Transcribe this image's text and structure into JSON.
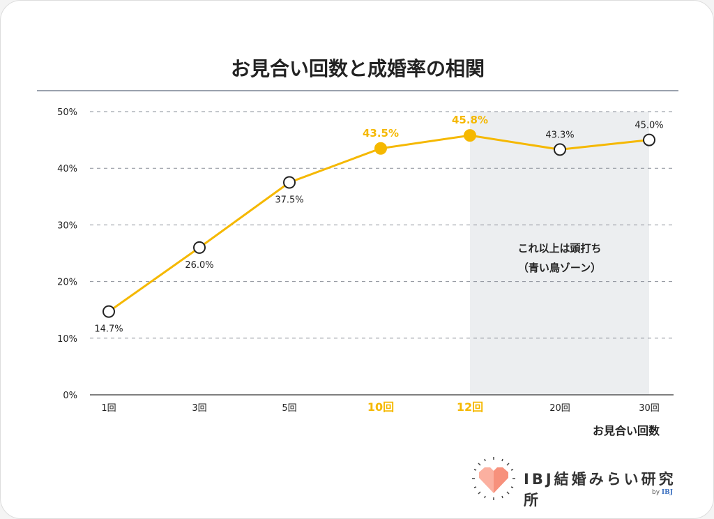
{
  "chart_data": {
    "type": "line",
    "title": "お見合い回数と成婚率の相関",
    "xlabel": "お見合い回数",
    "ylabel": "",
    "categories": [
      "1回",
      "3回",
      "5回",
      "10回",
      "12回",
      "20回",
      "30回"
    ],
    "values": [
      14.7,
      26.0,
      37.5,
      43.5,
      45.8,
      43.3,
      45.0
    ],
    "data_labels": [
      "14.7%",
      "26.0%",
      "37.5%",
      "43.5%",
      "45.8%",
      "43.3%",
      "45.0%"
    ],
    "highlighted": [
      "10回",
      "12回"
    ],
    "y_ticks": [
      "0%",
      "10%",
      "20%",
      "30%",
      "40%",
      "50%"
    ],
    "ylim": [
      0,
      50
    ],
    "grid": true,
    "shaded_zone": {
      "from": "12回",
      "to": "30回",
      "label_line1": "これ以上は頭打ち",
      "label_line2": "（青い鳥ゾーン）"
    },
    "colors": {
      "line": "#f5b800",
      "highlight": "#f5b800",
      "shade": "#eceef0",
      "grid": "#8a8f98"
    }
  },
  "logo": {
    "text": "IBJ結婚みらい研究所",
    "by": "by",
    "brand": "IBJ"
  }
}
